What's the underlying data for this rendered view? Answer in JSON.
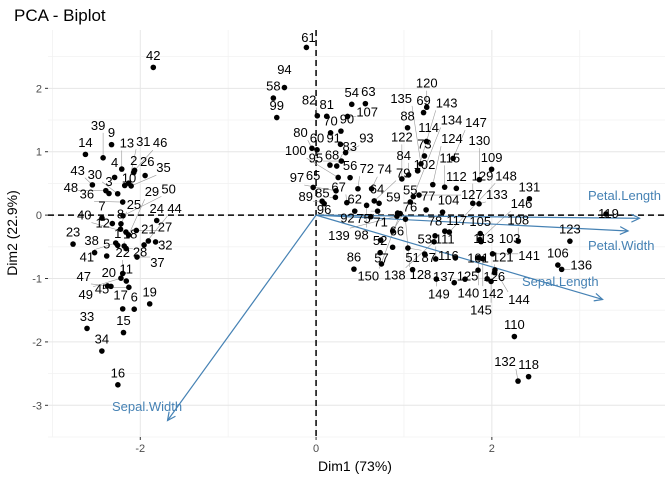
{
  "chart_data": {
    "type": "scatter",
    "title": "PCA - Biplot",
    "xlabel": "Dim1 (73%)",
    "ylabel": "Dim2 (22.9%)",
    "xlim": [
      -3.05,
      3.97
    ],
    "ylim": [
      -3.5,
      2.92
    ],
    "x_ticks": [
      -2,
      0,
      2
    ],
    "y_ticks": [
      -3,
      -2,
      -1,
      0,
      1,
      2
    ],
    "grid": true,
    "reference_lines": {
      "x": 0,
      "y": 0,
      "style": "dashed"
    },
    "point_color": "#000000",
    "variable_color": "#4682b4",
    "points": [
      [
        1,
        -2.257,
        -0.478
      ],
      [
        2,
        -2.074,
        0.672
      ],
      [
        3,
        -2.356,
        0.341
      ],
      [
        4,
        -2.292,
        0.595
      ],
      [
        5,
        -2.382,
        -0.645
      ],
      [
        6,
        -2.069,
        -1.484
      ],
      [
        7,
        -2.436,
        -0.047
      ],
      [
        8,
        -2.225,
        -0.222
      ],
      [
        9,
        -2.327,
        1.112
      ],
      [
        10,
        -2.177,
        0.467
      ],
      [
        11,
        -2.159,
        -1.04
      ],
      [
        12,
        -2.318,
        -0.133
      ],
      [
        13,
        -2.211,
        0.726
      ],
      [
        14,
        -2.624,
        0.958
      ],
      [
        15,
        -2.191,
        -1.853
      ],
      [
        16,
        -2.255,
        -2.677
      ],
      [
        17,
        -2.2,
        -1.479
      ],
      [
        18,
        -2.183,
        -0.487
      ],
      [
        19,
        -1.893,
        -1.4
      ],
      [
        20,
        -2.334,
        -1.124
      ],
      [
        21,
        -1.908,
        -0.408
      ],
      [
        22,
        -2.2,
        -0.921
      ],
      [
        23,
        -2.765,
        -0.457
      ],
      [
        24,
        -1.813,
        -0.085
      ],
      [
        25,
        -2.22,
        -0.137
      ],
      [
        26,
        -1.945,
        0.624
      ],
      [
        27,
        -2.045,
        -0.242
      ],
      [
        28,
        -2.161,
        -0.527
      ],
      [
        29,
        -2.133,
        -0.313
      ],
      [
        30,
        -2.257,
        0.337
      ],
      [
        31,
        -2.132,
        0.503
      ],
      [
        32,
        -1.826,
        -0.423
      ],
      [
        33,
        -2.606,
        -1.787
      ],
      [
        34,
        -2.437,
        -2.144
      ],
      [
        35,
        -2.104,
        0.46
      ],
      [
        36,
        -2.2,
        0.206
      ],
      [
        37,
        -2.037,
        -0.661
      ],
      [
        38,
        -2.52,
        -0.592
      ],
      [
        39,
        -2.423,
        0.904
      ],
      [
        40,
        -2.163,
        -0.268
      ],
      [
        41,
        -2.279,
        -0.44
      ],
      [
        42,
        -1.852,
        2.33
      ],
      [
        43,
        -2.545,
        0.477
      ],
      [
        44,
        -1.957,
        -0.471
      ],
      [
        45,
        -2.13,
        -1.139
      ],
      [
        46,
        -2.065,
        0.706
      ],
      [
        47,
        -2.372,
        -1.117
      ],
      [
        48,
        -2.392,
        0.386
      ],
      [
        49,
        -2.22,
        -0.995
      ],
      [
        50,
        -2.197,
        -0.01
      ],
      [
        51,
        1.098,
        -0.86
      ],
      [
        52,
        0.729,
        -0.593
      ],
      [
        53,
        1.236,
        -0.614
      ],
      [
        54,
        0.406,
        1.748
      ],
      [
        55,
        1.072,
        0.208
      ],
      [
        56,
        0.387,
        0.591
      ],
      [
        57,
        0.744,
        -0.77
      ],
      [
        58,
        -0.486,
        1.846
      ],
      [
        59,
        0.928,
        0.032
      ],
      [
        60,
        0.011,
        1.03
      ],
      [
        61,
        -0.11,
        2.645
      ],
      [
        62,
        0.44,
        0.063
      ],
      [
        63,
        0.561,
        1.758
      ],
      [
        64,
        0.717,
        0.186
      ],
      [
        65,
        -0.033,
        0.437
      ],
      [
        66,
        0.871,
        -0.507
      ],
      [
        67,
        0.35,
        0.196
      ],
      [
        68,
        0.158,
        0.789
      ],
      [
        69,
        1.223,
        1.617
      ],
      [
        70,
        0.165,
        1.298
      ],
      [
        71,
        0.735,
        -0.395
      ],
      [
        72,
        0.476,
        0.416
      ],
      [
        73,
        1.233,
        0.933
      ],
      [
        74,
        0.632,
        0.416
      ],
      [
        75,
        0.7,
        0.063
      ],
      [
        76,
        0.872,
        -0.25
      ],
      [
        77,
        1.252,
        0.082
      ],
      [
        78,
        1.354,
        -0.327
      ],
      [
        79,
        0.662,
        0.224
      ],
      [
        80,
        -0.047,
        1.054
      ],
      [
        81,
        0.121,
        1.559
      ],
      [
        82,
        0.014,
        1.567
      ],
      [
        83,
        0.235,
        0.774
      ],
      [
        84,
        1.053,
        0.634
      ],
      [
        85,
        0.22,
        0.281
      ],
      [
        86,
        0.431,
        -0.852
      ],
      [
        87,
        1.045,
        -0.52
      ],
      [
        88,
        1.041,
        1.378
      ],
      [
        89,
        0.069,
        0.219
      ],
      [
        90,
        0.283,
        1.325
      ],
      [
        91,
        0.278,
        1.117
      ],
      [
        92,
        0.623,
        -0.025
      ],
      [
        93,
        0.336,
        0.985
      ],
      [
        94,
        -0.36,
        2.012
      ],
      [
        95,
        0.288,
        0.853
      ],
      [
        96,
        0.092,
        0.181
      ],
      [
        97,
        0.227,
        0.384
      ],
      [
        98,
        0.575,
        0.154
      ],
      [
        99,
        -0.447,
        1.539
      ],
      [
        100,
        0.252,
        0.594
      ],
      [
        101,
        1.843,
        -0.869
      ],
      [
        102,
        1.156,
        0.699
      ],
      [
        103,
        2.203,
        -0.562
      ],
      [
        104,
        1.439,
        0.047
      ],
      [
        105,
        1.868,
        -0.291
      ],
      [
        106,
        2.751,
        -0.788
      ],
      [
        107,
        0.358,
        1.556
      ],
      [
        108,
        2.3,
        -0.41
      ],
      [
        109,
        1.997,
        0.723
      ],
      [
        110,
        2.256,
        -1.915
      ],
      [
        111,
        1.362,
        -0.692
      ],
      [
        112,
        1.596,
        0.422
      ],
      [
        113,
        1.877,
        -0.418
      ],
      [
        114,
        1.256,
        1.162
      ],
      [
        115,
        1.463,
        0.441
      ],
      [
        116,
        1.585,
        -0.675
      ],
      [
        117,
        1.465,
        -0.254
      ],
      [
        118,
        2.418,
        -2.548
      ],
      [
        119,
        3.299,
        0.018
      ],
      [
        120,
        1.259,
        1.702
      ],
      [
        121,
        2.031,
        -0.907
      ],
      [
        122,
        0.976,
        0.571
      ],
      [
        123,
        2.888,
        -0.411
      ],
      [
        124,
        1.328,
        0.481
      ],
      [
        125,
        1.695,
        -1.01
      ],
      [
        126,
        1.947,
        -1.004
      ],
      [
        127,
        1.171,
        0.316
      ],
      [
        128,
        1.017,
        -0.064
      ],
      [
        129,
        1.783,
        0.187
      ],
      [
        130,
        1.858,
        0.56
      ],
      [
        131,
        2.427,
        0.258
      ],
      [
        132,
        2.298,
        -2.618
      ],
      [
        133,
        1.854,
        0.178
      ],
      [
        134,
        1.106,
        0.292
      ],
      [
        135,
        1.193,
        0.809
      ],
      [
        136,
        2.794,
        -0.856
      ],
      [
        137,
        1.572,
        -1.066
      ],
      [
        138,
        1.342,
        -0.421
      ],
      [
        139,
        0.92,
        -0.017
      ],
      [
        140,
        1.846,
        -0.674
      ],
      [
        141,
        2.008,
        -0.611
      ],
      [
        142,
        1.897,
        -0.687
      ],
      [
        143,
        1.156,
        0.699
      ],
      [
        144,
        2.035,
        -0.865
      ],
      [
        145,
        1.991,
        -1.046
      ],
      [
        146,
        1.864,
        -0.386
      ],
      [
        147,
        1.559,
        0.894
      ],
      [
        148,
        1.516,
        -0.268
      ],
      [
        149,
        1.368,
        -1.008
      ],
      [
        150,
        0.957,
        0.024
      ]
    ],
    "variables": [
      {
        "name": "Petal.Length",
        "x": 3.68,
        "y": -0.05
      },
      {
        "name": "Petal.Width",
        "x": 3.55,
        "y": -0.25
      },
      {
        "name": "Sepal.Length",
        "x": 3.26,
        "y": -1.33
      },
      {
        "name": "Sepal.Width",
        "x": -1.69,
        "y": -3.24
      }
    ]
  }
}
